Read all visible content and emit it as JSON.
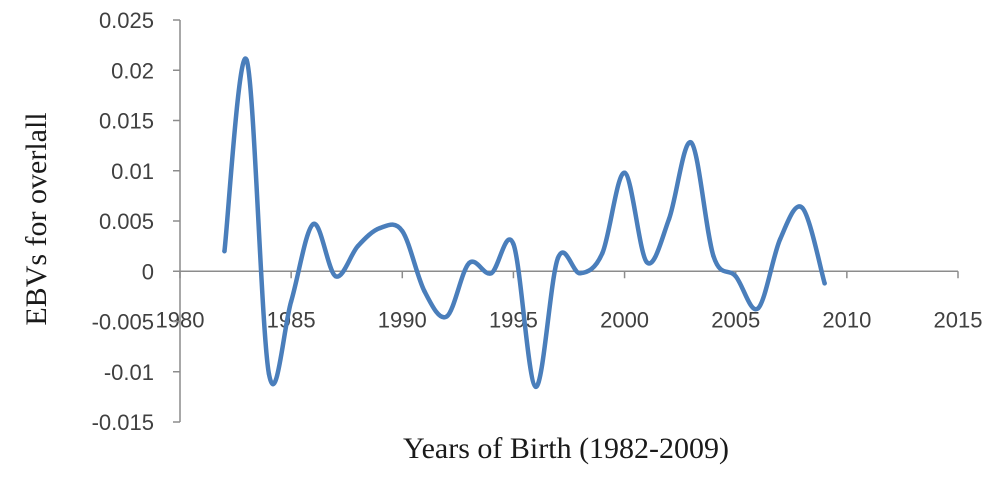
{
  "chart_data": {
    "type": "line",
    "title": "",
    "xlabel": "Years of Birth (1982-2009)",
    "ylabel": "EBVs for overlall",
    "xlim": [
      1980,
      2015
    ],
    "ylim": [
      -0.015,
      0.025
    ],
    "x_ticks": [
      "1980",
      "1985",
      "1990",
      "1995",
      "2000",
      "2005",
      "2010",
      "2015"
    ],
    "y_ticks": [
      "0.025",
      "0.02",
      "0.015",
      "0.01",
      "0.005",
      "0",
      "-0.005",
      "-0.01",
      "-0.015"
    ],
    "grid": false,
    "legend": "none",
    "series": [
      {
        "color": "#4a7ebb",
        "x": [
          1982,
          1983,
          1984,
          1985,
          1986,
          1987,
          1988,
          1989,
          1990,
          1991,
          1992,
          1993,
          1994,
          1995,
          1996,
          1997,
          1998,
          1999,
          2000,
          2001,
          2002,
          2003,
          2004,
          2005,
          2006,
          2007,
          2008,
          2009
        ],
        "values": [
          0.002,
          0.021,
          -0.0102,
          -0.003,
          0.0047,
          -0.0005,
          0.0025,
          0.0043,
          0.004,
          -0.002,
          -0.0045,
          0.0008,
          -0.0002,
          0.0027,
          -0.0115,
          0.0013,
          -0.0002,
          0.0018,
          0.0098,
          0.0009,
          0.0052,
          0.0128,
          0.0015,
          -0.0005,
          -0.0037,
          0.0032,
          0.0063,
          -0.0012
        ]
      }
    ]
  }
}
